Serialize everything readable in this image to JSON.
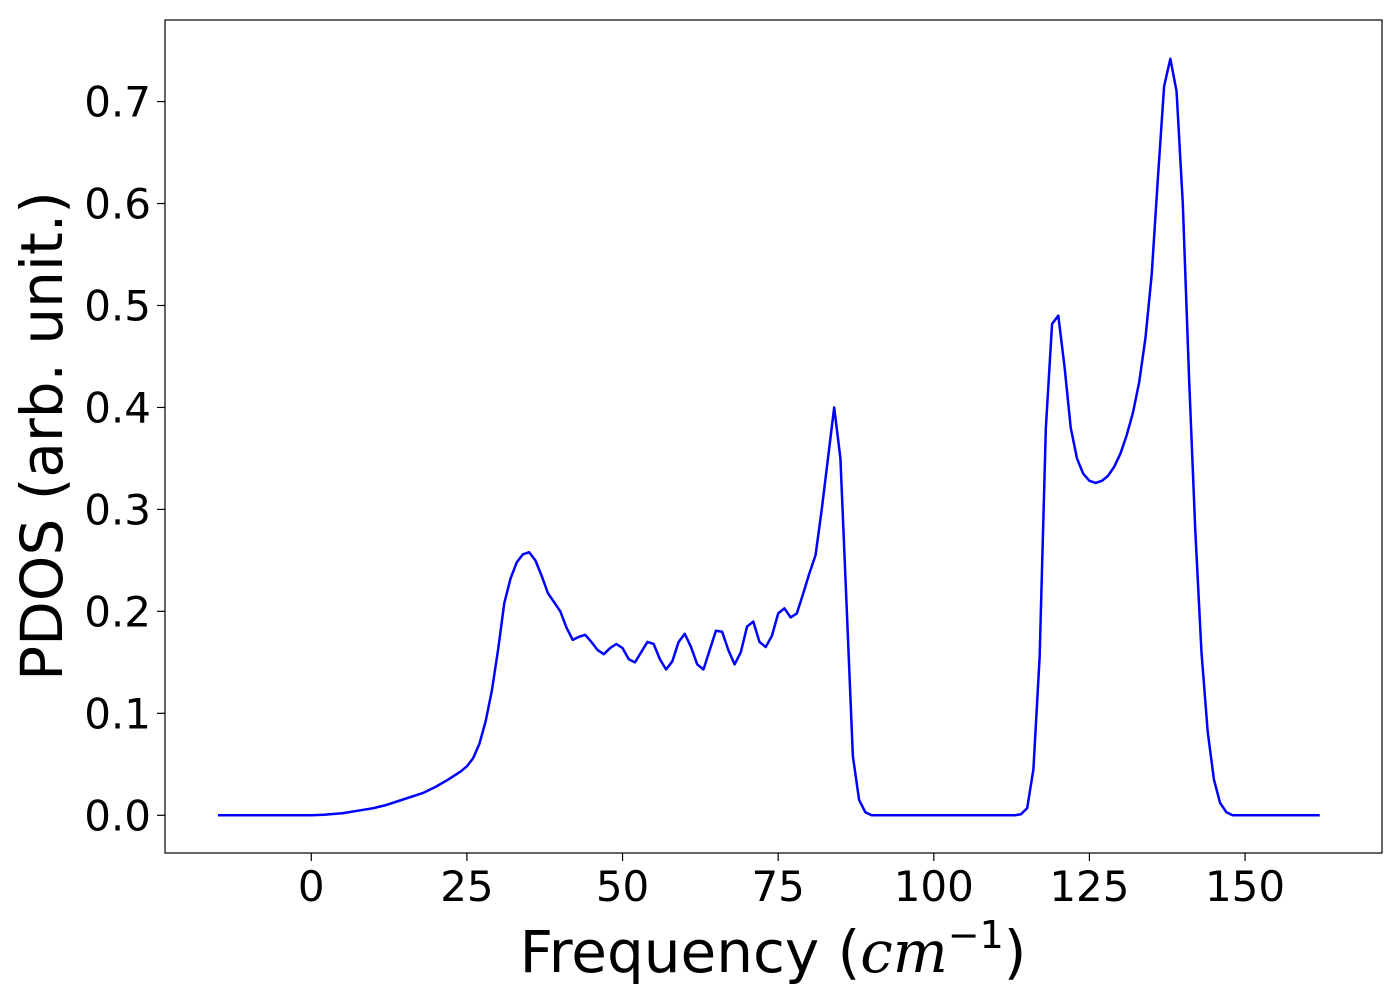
{
  "chart_data": {
    "type": "line",
    "title": "",
    "xlabel_prefix": "Frequency (",
    "xlabel_math": "cm",
    "xlabel_sup": "−1",
    "xlabel_suffix": ")",
    "ylabel": "PDOS (arb. unit.)",
    "xlim": [
      -23.5,
      172
    ],
    "ylim": [
      -0.037,
      0.78
    ],
    "grid": false,
    "legend": "none",
    "line_color": "#0000ff",
    "xticks": [
      0,
      25,
      50,
      75,
      100,
      125,
      150
    ],
    "xtick_labels": [
      "0",
      "25",
      "50",
      "75",
      "100",
      "125",
      "150"
    ],
    "yticks": [
      0.0,
      0.1,
      0.2,
      0.3,
      0.4,
      0.5,
      0.6,
      0.7
    ],
    "ytick_labels": [
      "0.0",
      "0.1",
      "0.2",
      "0.3",
      "0.4",
      "0.5",
      "0.6",
      "0.7"
    ],
    "series": [
      {
        "x": [
          -15,
          -10,
          -5,
          0,
          2,
          5,
          8,
          10,
          12,
          14,
          16,
          18,
          20,
          22,
          24,
          25,
          26,
          27,
          28,
          29,
          30,
          31,
          32,
          33,
          34,
          35,
          36,
          37,
          38,
          39,
          40,
          41,
          42,
          43,
          44,
          45,
          46,
          47,
          48,
          49,
          50,
          51,
          52,
          53,
          54,
          55,
          56,
          57,
          58,
          59,
          60,
          61,
          62,
          63,
          64,
          65,
          66,
          67,
          68,
          69,
          70,
          71,
          72,
          73,
          74,
          75,
          76,
          77,
          78,
          79,
          80,
          81,
          82,
          83,
          84,
          85,
          86,
          87,
          88,
          89,
          90,
          95,
          100,
          105,
          110,
          113,
          114,
          115,
          116,
          117,
          118,
          119,
          120,
          121,
          122,
          123,
          124,
          125,
          126,
          127,
          128,
          129,
          130,
          131,
          132,
          133,
          134,
          135,
          136,
          137,
          138,
          139,
          140,
          141,
          142,
          143,
          144,
          145,
          146,
          147,
          148,
          149,
          150,
          151,
          152,
          155,
          160,
          162
        ],
        "y": [
          0.0,
          0.0,
          0.0,
          0.0,
          0.0005,
          0.002,
          0.005,
          0.007,
          0.01,
          0.014,
          0.018,
          0.022,
          0.028,
          0.035,
          0.043,
          0.048,
          0.056,
          0.07,
          0.092,
          0.122,
          0.162,
          0.208,
          0.232,
          0.248,
          0.256,
          0.258,
          0.25,
          0.235,
          0.218,
          0.209,
          0.2,
          0.184,
          0.172,
          0.175,
          0.177,
          0.17,
          0.162,
          0.158,
          0.164,
          0.168,
          0.164,
          0.153,
          0.15,
          0.16,
          0.17,
          0.168,
          0.153,
          0.143,
          0.151,
          0.17,
          0.178,
          0.165,
          0.148,
          0.143,
          0.162,
          0.181,
          0.18,
          0.162,
          0.148,
          0.16,
          0.185,
          0.19,
          0.17,
          0.165,
          0.176,
          0.198,
          0.203,
          0.194,
          0.198,
          0.217,
          0.237,
          0.255,
          0.3,
          0.35,
          0.4,
          0.35,
          0.205,
          0.058,
          0.015,
          0.003,
          0.0,
          0.0,
          0.0,
          0.0,
          0.0,
          0.0,
          0.001,
          0.007,
          0.045,
          0.155,
          0.38,
          0.482,
          0.49,
          0.44,
          0.38,
          0.35,
          0.335,
          0.328,
          0.326,
          0.328,
          0.333,
          0.342,
          0.355,
          0.373,
          0.395,
          0.425,
          0.468,
          0.53,
          0.625,
          0.715,
          0.742,
          0.71,
          0.6,
          0.43,
          0.28,
          0.16,
          0.082,
          0.035,
          0.012,
          0.003,
          0.0,
          0.0,
          0.0,
          0.0,
          0.0,
          0.0,
          0.0,
          0.0
        ]
      }
    ]
  }
}
